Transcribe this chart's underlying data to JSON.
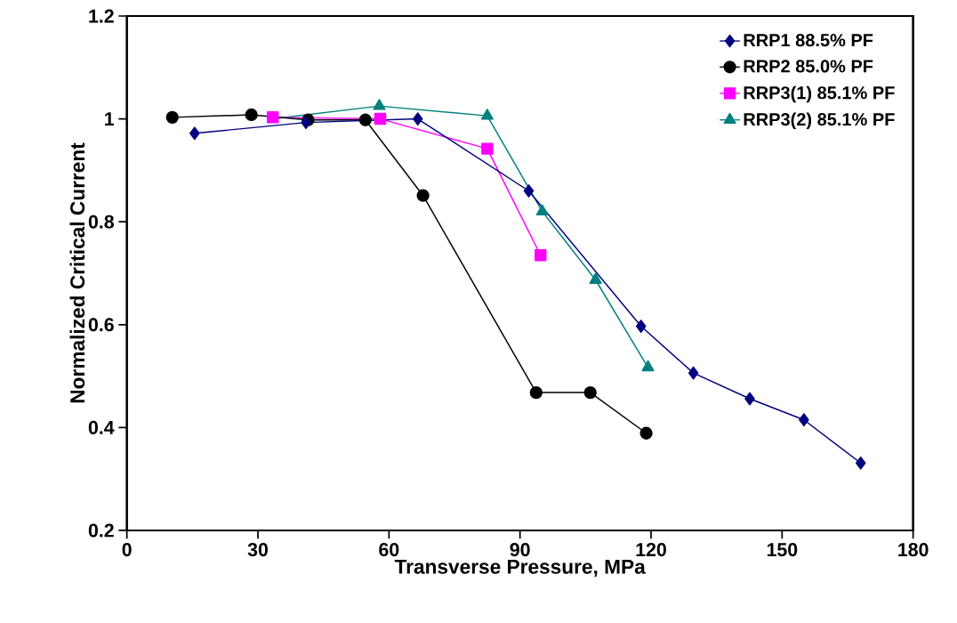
{
  "chart_data": {
    "type": "line",
    "xlabel": "Transverse Pressure, MPa",
    "ylabel": "Normalized Critical Current",
    "xlim": [
      0,
      180
    ],
    "xticks": [
      0,
      30,
      60,
      90,
      120,
      150,
      180
    ],
    "ylim": [
      0.2,
      1.2
    ],
    "yticks": [
      0.2,
      0.4,
      0.6,
      0.8,
      1,
      1.2
    ],
    "grid": false,
    "legend": "top right",
    "series": [
      {
        "name": "RRP1 88.5% PF",
        "color": "#000080",
        "marker": "diamond",
        "x": [
          15.5,
          41,
          66.6,
          92,
          117.7,
          129.7,
          142.6,
          155,
          168
        ],
        "values": [
          0.972,
          0.993,
          1.0,
          0.86,
          0.597,
          0.506,
          0.456,
          0.415,
          0.331
        ]
      },
      {
        "name": "RRP2 85.0% PF",
        "color": "#000000",
        "marker": "circle",
        "x": [
          10.4,
          28.5,
          41.5,
          54.6,
          67.8,
          93.7,
          106.1,
          118.9
        ],
        "values": [
          1.003,
          1.008,
          0.998,
          0.998,
          0.851,
          0.468,
          0.468,
          0.389
        ]
      },
      {
        "name": "RRP3(1) 85.1% PF",
        "color": "#ff00ff",
        "marker": "square",
        "x": [
          33.4,
          58,
          82.5,
          94.7
        ],
        "values": [
          1.003,
          1.0,
          0.942,
          0.735
        ]
      },
      {
        "name": "RRP3(2) 85.1% PF",
        "color": "#008080",
        "marker": "triangle",
        "x": [
          33.4,
          57.8,
          82.5,
          95.1,
          107.3,
          119.3
        ],
        "values": [
          1.0,
          1.025,
          1.006,
          0.82,
          0.687,
          0.517
        ]
      }
    ]
  }
}
